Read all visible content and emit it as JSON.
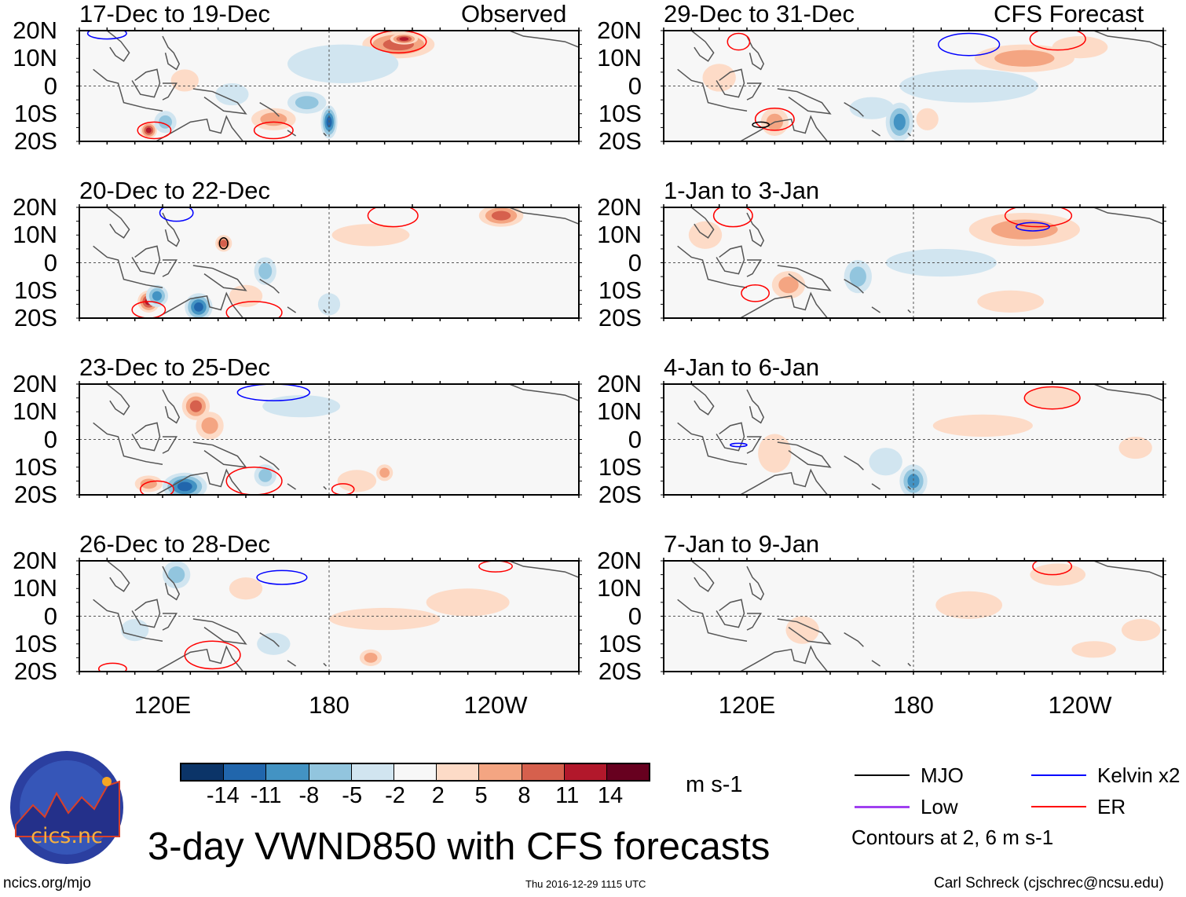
{
  "title": "3-day VWND850 with CFS forecasts",
  "units": "m s-1",
  "header_left": "Observed",
  "header_right": "CFS Forecast",
  "y_ticks": [
    "20N",
    "10N",
    "0",
    "10S",
    "20S"
  ],
  "x_ticks": [
    "120E",
    "180",
    "120W"
  ],
  "footer": {
    "url": "ncics.org/mjo",
    "timestamp": "Thu 2016-12-29 1115 UTC",
    "author": "Carl Schreck (cjschrec@ncsu.edu)"
  },
  "logo_text": {
    "name": "cics.nc",
    "ring": "Cooperative Institute for Climate and Satellites"
  },
  "colorbar": {
    "labels": [
      "-14",
      "-11",
      "-8",
      "-5",
      "-2",
      "2",
      "5",
      "8",
      "11",
      "14"
    ],
    "colors": [
      "#0b3468",
      "#2166ac",
      "#4393c3",
      "#92c5de",
      "#d1e5f0",
      "#f7f7f7",
      "#fddbc7",
      "#f4a582",
      "#d6604d",
      "#b2182b",
      "#67001f"
    ]
  },
  "legend": {
    "items": [
      {
        "label": "MJO",
        "color": "#000000"
      },
      {
        "label": "Kelvin x2",
        "color": "#0000ff"
      },
      {
        "label": "Low",
        "color": "#a040f0"
      },
      {
        "label": "ER",
        "color": "#ff0000"
      }
    ],
    "note": "Contours at 2, 6 m s-1"
  },
  "chart_data": {
    "type": "map",
    "lon_range": [
      90,
      270
    ],
    "lat_range": [
      -20,
      20
    ],
    "panels": [
      {
        "title": "17-Dec to 19-Dec",
        "column": "Observed",
        "blobs": [
          [
            205,
            15,
            8,
            13,
            5
          ],
          [
            207,
            17,
            11,
            5,
            2
          ],
          [
            180,
            -13,
            -11,
            3,
            6
          ],
          [
            172,
            -6,
            -5,
            7,
            4
          ],
          [
            160,
            -12,
            5,
            8,
            4
          ],
          [
            115,
            -16,
            12,
            3,
            3
          ],
          [
            121,
            -13,
            -6,
            4,
            4
          ],
          [
            185,
            8,
            -2,
            20,
            7
          ],
          [
            128,
            2,
            3,
            5,
            4
          ],
          [
            145,
            -3,
            -3,
            6,
            4
          ]
        ],
        "contours": [
          [
            205,
            16,
            "ER",
            10,
            4
          ],
          [
            160,
            -16,
            "ER",
            7,
            3
          ],
          [
            117,
            -16,
            "ER",
            6,
            3
          ],
          [
            100,
            19,
            "Kelvin",
            7,
            2
          ]
        ]
      },
      {
        "title": "29-Dec to 31-Dec",
        "column": "CFS Forecast",
        "blobs": [
          [
            220,
            10,
            6,
            18,
            5
          ],
          [
            175,
            -13,
            -10,
            5,
            7
          ],
          [
            165,
            -8,
            -4,
            8,
            4
          ],
          [
            130,
            -13,
            6,
            5,
            5
          ],
          [
            185,
            -12,
            4,
            4,
            4
          ],
          [
            200,
            0,
            -2,
            25,
            6
          ],
          [
            110,
            3,
            3,
            6,
            5
          ],
          [
            240,
            14,
            4,
            10,
            4
          ]
        ],
        "contours": [
          [
            200,
            15,
            "Kelvin",
            11,
            4
          ],
          [
            232,
            17,
            "ER",
            10,
            4
          ],
          [
            130,
            -12,
            "ER",
            7,
            4
          ],
          [
            125,
            -14,
            "MJO",
            3,
            1
          ],
          [
            117,
            16,
            "ER",
            4,
            3
          ]
        ]
      },
      {
        "title": "20-Dec to 22-Dec",
        "column": "Observed",
        "blobs": [
          [
            115,
            -14,
            12,
            4,
            4
          ],
          [
            118,
            -12,
            -8,
            4,
            4
          ],
          [
            133,
            -16,
            -11,
            5,
            5
          ],
          [
            157,
            -3,
            -6,
            4,
            5
          ],
          [
            242,
            17,
            9,
            8,
            4
          ],
          [
            142,
            7,
            9,
            3,
            3
          ],
          [
            195,
            10,
            3,
            14,
            4
          ],
          [
            150,
            -12,
            3,
            6,
            4
          ],
          [
            180,
            -15,
            -3,
            4,
            4
          ]
        ],
        "contours": [
          [
            115,
            -17,
            "ER",
            6,
            3
          ],
          [
            153,
            -18,
            "ER",
            10,
            4
          ],
          [
            203,
            17,
            "ER",
            9,
            4
          ],
          [
            125,
            18,
            "Kelvin",
            6,
            3
          ],
          [
            142,
            7,
            "MJO",
            1.5,
            2
          ]
        ]
      },
      {
        "title": "1-Jan to 3-Jan",
        "column": "CFS Forecast",
        "blobs": [
          [
            220,
            12,
            7,
            20,
            6
          ],
          [
            135,
            -8,
            5,
            6,
            5
          ],
          [
            160,
            -5,
            -5,
            5,
            6
          ],
          [
            215,
            -14,
            4,
            12,
            4
          ],
          [
            190,
            0,
            -2,
            20,
            5
          ],
          [
            105,
            10,
            4,
            6,
            5
          ]
        ],
        "contours": [
          [
            225,
            17,
            "ER",
            12,
            4
          ],
          [
            223,
            13,
            "Kelvin",
            6,
            1.5
          ],
          [
            115,
            17,
            "ER",
            7,
            4
          ],
          [
            123,
            -11,
            "ER",
            5,
            3
          ]
        ]
      },
      {
        "title": "23-Dec to 25-Dec",
        "column": "Observed",
        "blobs": [
          [
            132,
            12,
            9,
            5,
            5
          ],
          [
            128,
            -17,
            -12,
            8,
            5
          ],
          [
            115,
            -16,
            6,
            5,
            3
          ],
          [
            157,
            -13,
            -5,
            4,
            4
          ],
          [
            137,
            5,
            5,
            5,
            5
          ],
          [
            190,
            -15,
            4,
            7,
            4
          ],
          [
            170,
            12,
            -2,
            14,
            4
          ],
          [
            200,
            -12,
            5,
            3,
            3
          ]
        ],
        "contours": [
          [
            153,
            -15,
            "ER",
            10,
            5
          ],
          [
            118,
            -18,
            "ER",
            6,
            3
          ],
          [
            160,
            17,
            "Kelvin",
            13,
            3
          ],
          [
            185,
            -18,
            "ER",
            4,
            2
          ]
        ]
      },
      {
        "title": "4-Jan to 6-Jan",
        "column": "CFS Forecast",
        "blobs": [
          [
            180,
            -15,
            -9,
            5,
            6
          ],
          [
            130,
            -5,
            4,
            6,
            7
          ],
          [
            230,
            15,
            4,
            10,
            4
          ],
          [
            170,
            -8,
            -3,
            6,
            5
          ],
          [
            205,
            5,
            2,
            18,
            4
          ],
          [
            260,
            -3,
            3,
            6,
            4
          ]
        ],
        "contours": [
          [
            230,
            15,
            "ER",
            10,
            4
          ],
          [
            117,
            -2,
            "Kelvin",
            3,
            0.6
          ]
        ]
      },
      {
        "title": "26-Dec to 28-Dec",
        "column": "Observed",
        "blobs": [
          [
            125,
            15,
            -5,
            5,
            5
          ],
          [
            150,
            10,
            4,
            6,
            4
          ],
          [
            200,
            -1,
            3,
            20,
            4
          ],
          [
            195,
            -15,
            6,
            4,
            3
          ],
          [
            160,
            -10,
            -4,
            6,
            4
          ],
          [
            230,
            5,
            4,
            15,
            5
          ],
          [
            110,
            -5,
            -3,
            5,
            4
          ]
        ],
        "contours": [
          [
            163,
            14,
            "Kelvin",
            9,
            2.5
          ],
          [
            138,
            -14,
            "ER",
            10,
            5
          ],
          [
            240,
            18,
            "ER",
            6,
            2
          ],
          [
            102,
            -19,
            "ER",
            5,
            2
          ]
        ]
      },
      {
        "title": "7-Jan to 9-Jan",
        "column": "CFS Forecast",
        "blobs": [
          [
            200,
            4,
            3,
            12,
            5
          ],
          [
            232,
            15,
            4,
            10,
            4
          ],
          [
            262,
            -5,
            4,
            7,
            4
          ],
          [
            140,
            -5,
            2,
            6,
            5
          ],
          [
            245,
            -12,
            2,
            8,
            3
          ]
        ],
        "contours": [
          [
            230,
            18,
            "ER",
            7,
            3
          ]
        ]
      }
    ]
  }
}
